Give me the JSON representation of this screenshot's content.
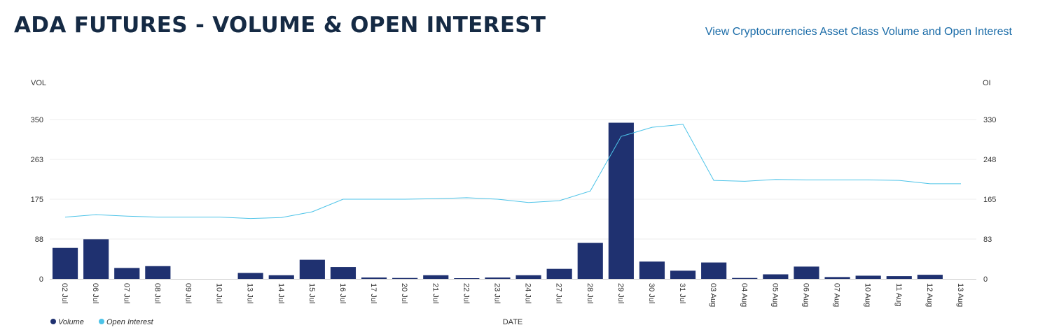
{
  "header": {
    "title": "ADA FUTURES - VOLUME & OPEN INTEREST",
    "link_label": "View Cryptocurrencies Asset Class Volume and Open Interest"
  },
  "colors": {
    "volume": "#1f3170",
    "open_interest": "#4cc3e8",
    "grid": "#ececec"
  },
  "chart_data": {
    "type": "bar",
    "xlabel": "DATE",
    "ylabel_left": "VOL",
    "ylabel_right": "OI",
    "categories": [
      "02 Jul",
      "06 Jul",
      "07 Jul",
      "08 Jul",
      "09 Jul",
      "10 Jul",
      "13 Jul",
      "14 Jul",
      "15 Jul",
      "16 Jul",
      "17 Jul",
      "20 Jul",
      "21 Jul",
      "22 Jul",
      "23 Jul",
      "24 Jul",
      "27 Jul",
      "28 Jul",
      "29 Jul",
      "30 Jul",
      "31 Jul",
      "03 Aug",
      "04 Aug",
      "05 Aug",
      "06 Aug",
      "07 Aug",
      "10 Aug",
      "11 Aug",
      "12 Aug",
      "13 Aug"
    ],
    "ylim_left": [
      0,
      350
    ],
    "yticks_left": [
      "0",
      "88",
      "175",
      "263",
      "350"
    ],
    "ylim_right": [
      0,
      330
    ],
    "yticks_right": [
      "0",
      "83",
      "165",
      "248",
      "330"
    ],
    "grid": true,
    "legend_position": "bottom-left",
    "series": [
      {
        "name": "Volume",
        "type": "bar",
        "axis": "left",
        "values": [
          68,
          87,
          24,
          28,
          0,
          0,
          13,
          8,
          42,
          26,
          3,
          2,
          8,
          1,
          3,
          8,
          22,
          79,
          343,
          38,
          18,
          36,
          2,
          10,
          27,
          4,
          7,
          6,
          9,
          0
        ]
      },
      {
        "name": "Open Interest",
        "type": "line",
        "axis": "right",
        "values": [
          128,
          133,
          130,
          128,
          128,
          128,
          125,
          127,
          139,
          165,
          165,
          165,
          166,
          168,
          165,
          158,
          162,
          182,
          295,
          314,
          320,
          204,
          202,
          206,
          205,
          205,
          205,
          204,
          197,
          197
        ]
      }
    ]
  }
}
